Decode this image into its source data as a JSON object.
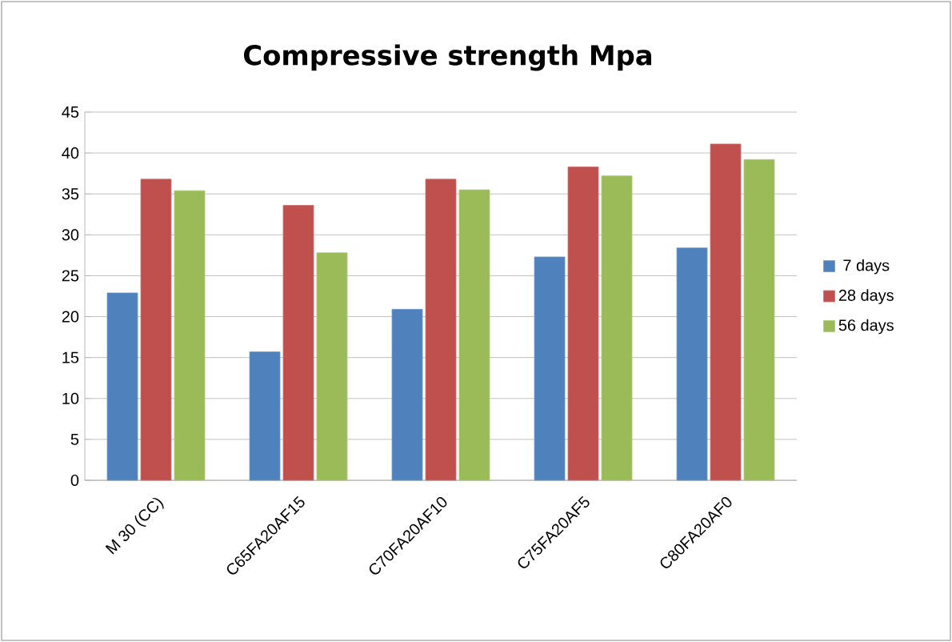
{
  "chart_data": {
    "type": "bar",
    "title": "Compressive strength Mpa",
    "categories": [
      "M 30 (CC)",
      "C65FA20AF15",
      "C70FA20AF10",
      "C75FA20AF5",
      "C80FA20AF0"
    ],
    "series": [
      {
        "name": "7 days",
        "color": "#4f81bd",
        "values": [
          22.9,
          15.7,
          20.9,
          27.3,
          28.4
        ]
      },
      {
        "name": "28 days",
        "color": "#c0504d",
        "values": [
          36.8,
          33.6,
          36.8,
          38.3,
          41.1
        ]
      },
      {
        "name": "56 days",
        "color": "#9bbb59",
        "values": [
          35.4,
          27.8,
          35.5,
          37.2,
          39.2
        ]
      }
    ],
    "ylim": [
      0,
      45
    ],
    "yticks": [
      0,
      5,
      10,
      15,
      20,
      25,
      30,
      35,
      40,
      45
    ],
    "grid": "y",
    "legend": "right"
  }
}
